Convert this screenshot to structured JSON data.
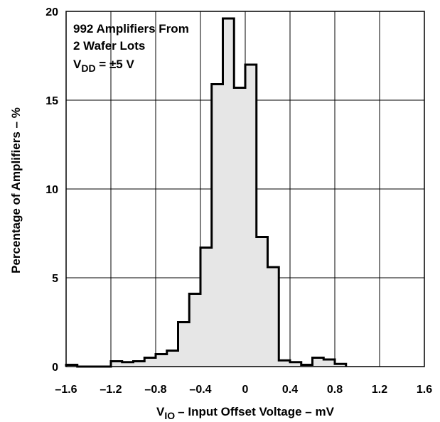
{
  "chart_data": {
    "type": "histogram",
    "xlabel": "– Input Offset Voltage – mV",
    "xlabel_symbol": "V",
    "xlabel_subscript": "IO",
    "ylabel": "Percentage of Amplifiers – %",
    "xlim": [
      -1.6,
      1.6
    ],
    "ylim": [
      0,
      20
    ],
    "x_ticks": [
      "–1.6",
      "–1.2",
      "–0.8",
      "–0.4",
      "0",
      "0.4",
      "0.8",
      "1.2",
      "1.6"
    ],
    "x_tick_values": [
      -1.6,
      -1.2,
      -0.8,
      -0.4,
      0,
      0.4,
      0.8,
      1.2,
      1.6
    ],
    "y_ticks": [
      "0",
      "5",
      "10",
      "15",
      "20"
    ],
    "y_tick_values": [
      0,
      5,
      10,
      15,
      20
    ],
    "grid": true,
    "fill_color": "#e6e6e6",
    "bin_width": 0.1,
    "bins": [
      {
        "x": [
          -1.6,
          -1.5
        ],
        "value": 0.1
      },
      {
        "x": [
          -1.5,
          -1.4
        ],
        "value": 0.0
      },
      {
        "x": [
          -1.4,
          -1.3
        ],
        "value": 0.0
      },
      {
        "x": [
          -1.3,
          -1.2
        ],
        "value": 0.0
      },
      {
        "x": [
          -1.2,
          -1.1
        ],
        "value": 0.3
      },
      {
        "x": [
          -1.1,
          -1.0
        ],
        "value": 0.25
      },
      {
        "x": [
          -1.0,
          -0.9
        ],
        "value": 0.3
      },
      {
        "x": [
          -0.9,
          -0.8
        ],
        "value": 0.5
      },
      {
        "x": [
          -0.8,
          -0.7
        ],
        "value": 0.7
      },
      {
        "x": [
          -0.7,
          -0.6
        ],
        "value": 0.9
      },
      {
        "x": [
          -0.6,
          -0.5
        ],
        "value": 2.5
      },
      {
        "x": [
          -0.5,
          -0.4
        ],
        "value": 4.1
      },
      {
        "x": [
          -0.4,
          -0.3
        ],
        "value": 6.7
      },
      {
        "x": [
          -0.3,
          -0.2
        ],
        "value": 15.9
      },
      {
        "x": [
          -0.2,
          -0.1
        ],
        "value": 19.6
      },
      {
        "x": [
          -0.1,
          0.0
        ],
        "value": 15.7
      },
      {
        "x": [
          0.0,
          0.1
        ],
        "value": 17.0
      },
      {
        "x": [
          0.1,
          0.2
        ],
        "value": 7.3
      },
      {
        "x": [
          0.2,
          0.3
        ],
        "value": 5.6
      },
      {
        "x": [
          0.3,
          0.4
        ],
        "value": 0.35
      },
      {
        "x": [
          0.4,
          0.5
        ],
        "value": 0.25
      },
      {
        "x": [
          0.5,
          0.6
        ],
        "value": 0.1
      },
      {
        "x": [
          0.6,
          0.7
        ],
        "value": 0.5
      },
      {
        "x": [
          0.7,
          0.8
        ],
        "value": 0.4
      },
      {
        "x": [
          0.8,
          0.9
        ],
        "value": 0.15
      }
    ],
    "annotation": {
      "line1": "992 Amplifiers From",
      "line2": "2 Wafer Lots",
      "line3_symbol": "V",
      "line3_subscript": "DD",
      "line3_rest": " = ±5 V"
    }
  }
}
